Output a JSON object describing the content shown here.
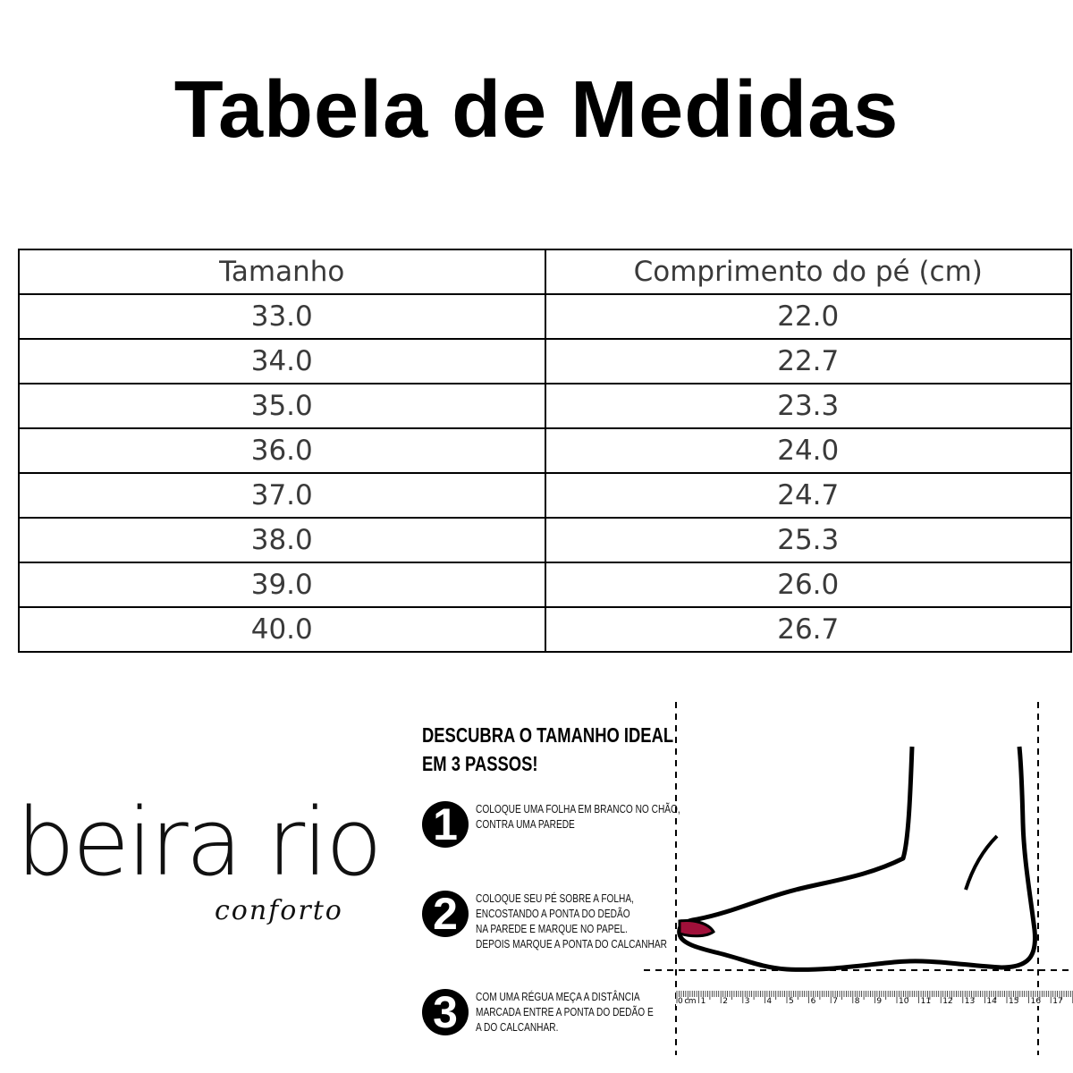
{
  "title": "Tabela de Medidas",
  "table": {
    "headers": [
      "Tamanho",
      "Comprimento do pé (cm)"
    ],
    "rows": [
      [
        "33.0",
        "22.0"
      ],
      [
        "34.0",
        "22.7"
      ],
      [
        "35.0",
        "23.3"
      ],
      [
        "36.0",
        "24.0"
      ],
      [
        "37.0",
        "24.7"
      ],
      [
        "38.0",
        "25.3"
      ],
      [
        "39.0",
        "26.0"
      ],
      [
        "40.0",
        "26.7"
      ]
    ]
  },
  "logo": {
    "main": "beira rio",
    "sub": "conforto"
  },
  "guide": {
    "heading_line1": "DESCUBRA O TAMANHO IDEAL",
    "heading_line2": "EM 3 PASSOS!",
    "steps": [
      {
        "number": "1",
        "lines": [
          "Coloque uma folha em branco  no chão,",
          "contra uma parede"
        ]
      },
      {
        "number": "2",
        "lines": [
          "Coloque seu pé sobre a folha,",
          "encostando a ponta do dedão",
          "na parede e marque no papel.",
          "Depois marque a ponta do calcanhar"
        ]
      },
      {
        "number": "3",
        "lines": [
          "Com uma régua meça a distância",
          "marcada entre a ponta do dedão e",
          "a do calcanhar."
        ]
      }
    ],
    "ruler_unit": "cm",
    "ruler_max": 18
  },
  "colors": {
    "toenail": "#a0103a"
  }
}
